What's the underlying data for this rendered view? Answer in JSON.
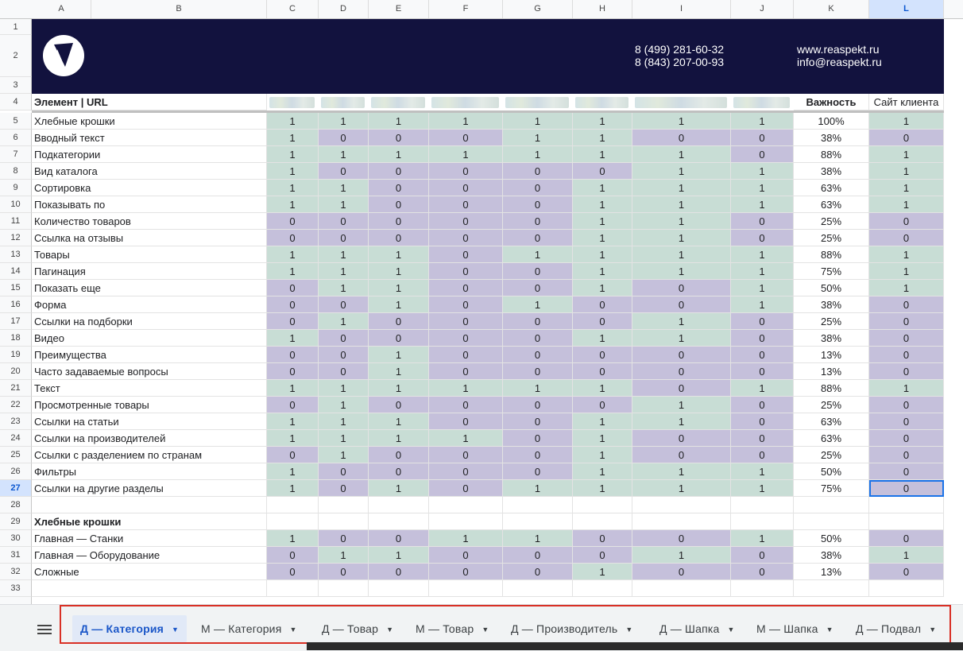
{
  "columns": [
    "A",
    "B",
    "C",
    "D",
    "E",
    "F",
    "G",
    "H",
    "I",
    "J",
    "K",
    "L"
  ],
  "selected_column": "L",
  "selected_row": "27",
  "header": {
    "phone1": "8 (499) 281-60-32",
    "phone2": "8 (843) 207-00-93",
    "website": "www.reaspekt.ru",
    "email": "info@reaspekt.ru",
    "brand_color": "#12123e"
  },
  "table": {
    "label_header": "Элемент | URL",
    "importance_header": "Важность",
    "client_header": "Сайт клиента",
    "rows": [
      {
        "label": "Хлебные крошки",
        "vals": [
          "1",
          "1",
          "1",
          "1",
          "1",
          "1",
          "1",
          "1"
        ],
        "pct": "100%",
        "client": "1"
      },
      {
        "label": "Вводный текст",
        "vals": [
          "1",
          "0",
          "0",
          "0",
          "1",
          "1",
          "0",
          "0"
        ],
        "pct": "38%",
        "client": "0"
      },
      {
        "label": "Подкатегории",
        "vals": [
          "1",
          "1",
          "1",
          "1",
          "1",
          "1",
          "1",
          "0"
        ],
        "pct": "88%",
        "client": "1"
      },
      {
        "label": "Вид каталога",
        "vals": [
          "1",
          "0",
          "0",
          "0",
          "0",
          "0",
          "1",
          "1"
        ],
        "pct": "38%",
        "client": "1"
      },
      {
        "label": "Сортировка",
        "vals": [
          "1",
          "1",
          "0",
          "0",
          "0",
          "1",
          "1",
          "1"
        ],
        "pct": "63%",
        "client": "1"
      },
      {
        "label": "Показывать по",
        "vals": [
          "1",
          "1",
          "0",
          "0",
          "0",
          "1",
          "1",
          "1"
        ],
        "pct": "63%",
        "client": "1"
      },
      {
        "label": "Количество товаров",
        "vals": [
          "0",
          "0",
          "0",
          "0",
          "0",
          "1",
          "1",
          "0"
        ],
        "pct": "25%",
        "client": "0"
      },
      {
        "label": "Ссылка на отзывы",
        "vals": [
          "0",
          "0",
          "0",
          "0",
          "0",
          "1",
          "1",
          "0"
        ],
        "pct": "25%",
        "client": "0"
      },
      {
        "label": "Товары",
        "vals": [
          "1",
          "1",
          "1",
          "0",
          "1",
          "1",
          "1",
          "1"
        ],
        "pct": "88%",
        "client": "1"
      },
      {
        "label": "Пагинация",
        "vals": [
          "1",
          "1",
          "1",
          "0",
          "0",
          "1",
          "1",
          "1"
        ],
        "pct": "75%",
        "client": "1"
      },
      {
        "label": "Показать еще",
        "vals": [
          "0",
          "1",
          "1",
          "0",
          "0",
          "1",
          "0",
          "1"
        ],
        "pct": "50%",
        "client": "1"
      },
      {
        "label": "Форма",
        "vals": [
          "0",
          "0",
          "1",
          "0",
          "1",
          "0",
          "0",
          "1"
        ],
        "pct": "38%",
        "client": "0"
      },
      {
        "label": "Ссылки на подборки",
        "vals": [
          "0",
          "1",
          "0",
          "0",
          "0",
          "0",
          "1",
          "0"
        ],
        "pct": "25%",
        "client": "0"
      },
      {
        "label": "Видео",
        "vals": [
          "1",
          "0",
          "0",
          "0",
          "0",
          "1",
          "1",
          "0"
        ],
        "pct": "38%",
        "client": "0"
      },
      {
        "label": "Преимущества",
        "vals": [
          "0",
          "0",
          "1",
          "0",
          "0",
          "0",
          "0",
          "0"
        ],
        "pct": "13%",
        "client": "0"
      },
      {
        "label": "Часто задаваемые вопросы",
        "vals": [
          "0",
          "0",
          "1",
          "0",
          "0",
          "0",
          "0",
          "0"
        ],
        "pct": "13%",
        "client": "0"
      },
      {
        "label": "Текст",
        "vals": [
          "1",
          "1",
          "1",
          "1",
          "1",
          "1",
          "0",
          "1"
        ],
        "pct": "88%",
        "client": "1"
      },
      {
        "label": "Просмотренные товары",
        "vals": [
          "0",
          "1",
          "0",
          "0",
          "0",
          "0",
          "1",
          "0"
        ],
        "pct": "25%",
        "client": "0"
      },
      {
        "label": "Ссылки на статьи",
        "vals": [
          "1",
          "1",
          "1",
          "0",
          "0",
          "1",
          "1",
          "0"
        ],
        "pct": "63%",
        "client": "0"
      },
      {
        "label": "Ссылки на производителей",
        "vals": [
          "1",
          "1",
          "1",
          "1",
          "0",
          "1",
          "0",
          "0"
        ],
        "pct": "63%",
        "client": "0"
      },
      {
        "label": "Ссылки с разделением по странам",
        "vals": [
          "0",
          "1",
          "0",
          "0",
          "0",
          "1",
          "0",
          "0"
        ],
        "pct": "25%",
        "client": "0"
      },
      {
        "label": "Фильтры",
        "vals": [
          "1",
          "0",
          "0",
          "0",
          "0",
          "1",
          "1",
          "1"
        ],
        "pct": "50%",
        "client": "0"
      },
      {
        "label": "Ссылки на другие разделы",
        "vals": [
          "1",
          "0",
          "1",
          "0",
          "1",
          "1",
          "1",
          "1"
        ],
        "pct": "75%",
        "client": "0"
      }
    ],
    "section2_title": "Хлебные крошки",
    "section2_rows": [
      {
        "label": "Главная — Станки",
        "vals": [
          "1",
          "0",
          "0",
          "1",
          "1",
          "0",
          "0",
          "1"
        ],
        "pct": "50%",
        "client": "0"
      },
      {
        "label": "Главная — Оборудование",
        "vals": [
          "0",
          "1",
          "1",
          "0",
          "0",
          "0",
          "1",
          "0"
        ],
        "pct": "38%",
        "client": "1"
      },
      {
        "label": "Сложные",
        "vals": [
          "0",
          "0",
          "0",
          "0",
          "0",
          "1",
          "0",
          "0"
        ],
        "pct": "13%",
        "client": "0"
      }
    ],
    "green_color": "#c8ddd5",
    "purple_color": "#c5c0db"
  },
  "tabs": [
    {
      "label": "Д — Категория",
      "active": true
    },
    {
      "label": "М — Категория",
      "active": false
    },
    {
      "label": "Д — Товар",
      "active": false
    },
    {
      "label": "М — Товар",
      "active": false
    },
    {
      "label": "Д — Производитель",
      "active": false
    },
    {
      "label": "Д — Шапка",
      "active": false
    },
    {
      "label": "М — Шапка",
      "active": false
    },
    {
      "label": "Д — Подвал",
      "active": false
    }
  ]
}
